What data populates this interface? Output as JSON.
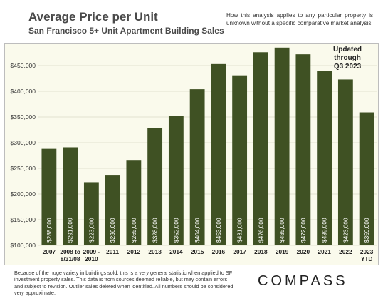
{
  "header": {
    "title": "Average Price per Unit",
    "subtitle": "San Francisco 5+ Unit Apartment Building Sales",
    "disclaimer": "How this analysis applies to any particular property is unknown without a specific comparative market analysis."
  },
  "annotation": {
    "line1": "Updated through",
    "line2": "Q3 2023"
  },
  "footer": {
    "note": "Because of the huge variety in buildings sold, this is a very general statistic when applied to SF investment property sales. This data is from sources deemed reliable, but may contain errors and subject to revision. Outlier sales deleted when identified. All numbers should be considered very approximate."
  },
  "brand": {
    "logo_text": "COMPASS"
  },
  "colors": {
    "bar": "#3f5123",
    "plot_background": "#fafaec",
    "grid": "#d9d9c9"
  },
  "chart_data": {
    "type": "bar",
    "title": "Average Price per Unit",
    "subtitle": "San Francisco 5+ Unit Apartment Building Sales",
    "categories": [
      [
        "2007"
      ],
      [
        "2008 to",
        "8/31/08"
      ],
      [
        "2009 -",
        "2010"
      ],
      [
        "2011"
      ],
      [
        "2012"
      ],
      [
        "2013"
      ],
      [
        "2014"
      ],
      [
        "2015"
      ],
      [
        "2016"
      ],
      [
        "2017"
      ],
      [
        "2018"
      ],
      [
        "2019"
      ],
      [
        "2020"
      ],
      [
        "2021"
      ],
      [
        "2022"
      ],
      [
        "2023",
        "YTD"
      ]
    ],
    "values": [
      288000,
      291000,
      223000,
      236000,
      265000,
      328000,
      352000,
      404000,
      453000,
      431000,
      476000,
      485000,
      472000,
      439000,
      423000,
      359000
    ],
    "data_labels": [
      "$288,000",
      "$291,000",
      "$223,000",
      "$236,000",
      "$265,000",
      "$328,000",
      "$352,000",
      "$404,000",
      "$453,000",
      "$431,000",
      "$476,000",
      "$485,000",
      "$472,000",
      "$439,000",
      "$423,000",
      "$359,000"
    ],
    "ylim": [
      100000,
      500000
    ],
    "yticks": [
      100000,
      150000,
      200000,
      250000,
      300000,
      350000,
      400000,
      450000
    ],
    "ytick_labels": [
      "$100,000",
      "$150,000",
      "$200,000",
      "$250,000",
      "$300,000",
      "$350,000",
      "$400,000",
      "$450,000"
    ],
    "grid": true,
    "legend": "none"
  }
}
